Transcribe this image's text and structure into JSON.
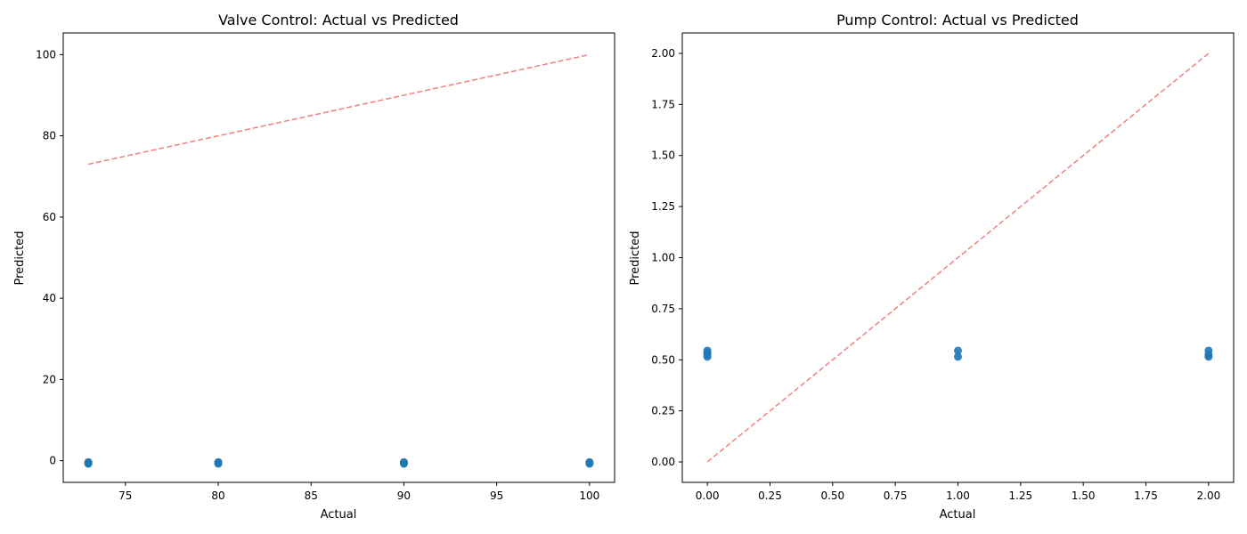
{
  "colors": {
    "points": "#1f77b4",
    "reference_line": "#f08080",
    "axes": "#000000",
    "background": "#ffffff"
  },
  "chart_data": [
    {
      "type": "scatter",
      "title": "Valve Control: Actual vs Predicted",
      "xlabel": "Actual",
      "ylabel": "Predicted",
      "xlim": [
        71.65,
        101.35
      ],
      "ylim": [
        -5.34,
        105.34
      ],
      "xticks": [
        75,
        80,
        85,
        90,
        95,
        100
      ],
      "yticks": [
        0,
        20,
        40,
        60,
        80,
        100
      ],
      "grid": false,
      "points": [
        {
          "x": 73,
          "y": -0.35
        },
        {
          "x": 73,
          "y": -0.55
        },
        {
          "x": 73,
          "y": -0.75
        },
        {
          "x": 80,
          "y": -0.35
        },
        {
          "x": 80,
          "y": -0.55
        },
        {
          "x": 80,
          "y": -0.75
        },
        {
          "x": 90,
          "y": -0.35
        },
        {
          "x": 90,
          "y": -0.55
        },
        {
          "x": 90,
          "y": -0.75
        },
        {
          "x": 100,
          "y": -0.35
        },
        {
          "x": 100,
          "y": -0.55
        },
        {
          "x": 100,
          "y": -0.75
        }
      ],
      "reference_line": {
        "x": [
          73,
          100
        ],
        "y": [
          73,
          100
        ],
        "style": "dashed"
      }
    },
    {
      "type": "scatter",
      "title": "Pump Control: Actual vs Predicted",
      "xlabel": "Actual",
      "ylabel": "Predicted",
      "xlim": [
        -0.1,
        2.1
      ],
      "ylim": [
        -0.1,
        2.1
      ],
      "xticks": [
        "0.00",
        "0.25",
        "0.50",
        "0.75",
        "1.00",
        "1.25",
        "1.50",
        "1.75",
        "2.00"
      ],
      "yticks": [
        "0.00",
        "0.25",
        "0.50",
        "0.75",
        "1.00",
        "1.25",
        "1.50",
        "1.75",
        "2.00"
      ],
      "grid": false,
      "points": [
        {
          "x": 0,
          "y": 0.515
        },
        {
          "x": 0,
          "y": 0.525
        },
        {
          "x": 0,
          "y": 0.535
        },
        {
          "x": 0,
          "y": 0.545
        },
        {
          "x": 1,
          "y": 0.515
        },
        {
          "x": 1,
          "y": 0.545
        },
        {
          "x": 2,
          "y": 0.515
        },
        {
          "x": 2,
          "y": 0.525
        },
        {
          "x": 2,
          "y": 0.545
        }
      ],
      "reference_line": {
        "x": [
          0,
          2
        ],
        "y": [
          0,
          2
        ],
        "style": "dashed"
      }
    }
  ]
}
